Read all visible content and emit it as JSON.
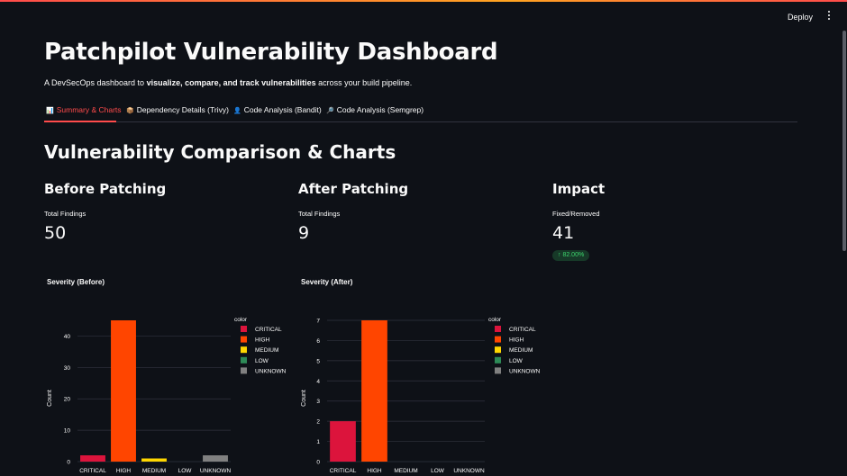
{
  "header": {
    "deploy_label": "Deploy"
  },
  "page": {
    "title": "Patchpilot Vulnerability Dashboard",
    "subtitle_pre": "A DevSecOps dashboard to ",
    "subtitle_bold": "visualize, compare, and track vulnerabilities",
    "subtitle_post": " across your build pipeline."
  },
  "tabs": [
    {
      "icon": "📊",
      "label": "Summary & Charts",
      "active": true
    },
    {
      "icon": "📦",
      "label": "Dependency Details (Trivy)"
    },
    {
      "icon": "👤",
      "label": "Code Analysis (Bandit)"
    },
    {
      "icon": "🔎",
      "label": "Code Analysis (Semgrep)"
    }
  ],
  "section_title": "Vulnerability Comparison & Charts",
  "metrics": [
    {
      "heading": "Before Patching",
      "label": "Total Findings",
      "value": "50"
    },
    {
      "heading": "After Patching",
      "label": "Total Findings",
      "value": "9"
    },
    {
      "heading": "Impact",
      "label": "Fixed/Removed",
      "value": "41",
      "delta": "↑ 82.00%"
    }
  ],
  "colors": {
    "CRITICAL": "#dc143c",
    "HIGH": "#ff4500",
    "MEDIUM": "#ffd700",
    "LOW": "#2e8b57",
    "UNKNOWN": "#808080",
    "delta_bg": "#173928",
    "delta_fg": "#3dd56d"
  },
  "chart_data": [
    {
      "type": "bar",
      "title": "Severity (Before)",
      "categories": [
        "CRITICAL",
        "HIGH",
        "MEDIUM",
        "LOW",
        "UNKNOWN"
      ],
      "values": [
        2,
        45,
        1,
        0,
        2
      ],
      "ylabel": "Count",
      "yticks": [
        0,
        10,
        20,
        30,
        40
      ],
      "ylim": [
        0,
        45
      ],
      "legend_title": "color",
      "legend": [
        "CRITICAL",
        "HIGH",
        "MEDIUM",
        "LOW",
        "UNKNOWN"
      ],
      "grid": true
    },
    {
      "type": "bar",
      "title": "Severity (After)",
      "categories": [
        "CRITICAL",
        "HIGH",
        "MEDIUM",
        "LOW",
        "UNKNOWN"
      ],
      "values": [
        2,
        7,
        0,
        0,
        0
      ],
      "ylabel": "Count",
      "yticks": [
        0,
        1,
        2,
        3,
        4,
        5,
        6,
        7
      ],
      "ylim": [
        0,
        7
      ],
      "legend_title": "color",
      "legend": [
        "CRITICAL",
        "HIGH",
        "MEDIUM",
        "LOW",
        "UNKNOWN"
      ],
      "grid": true
    }
  ]
}
